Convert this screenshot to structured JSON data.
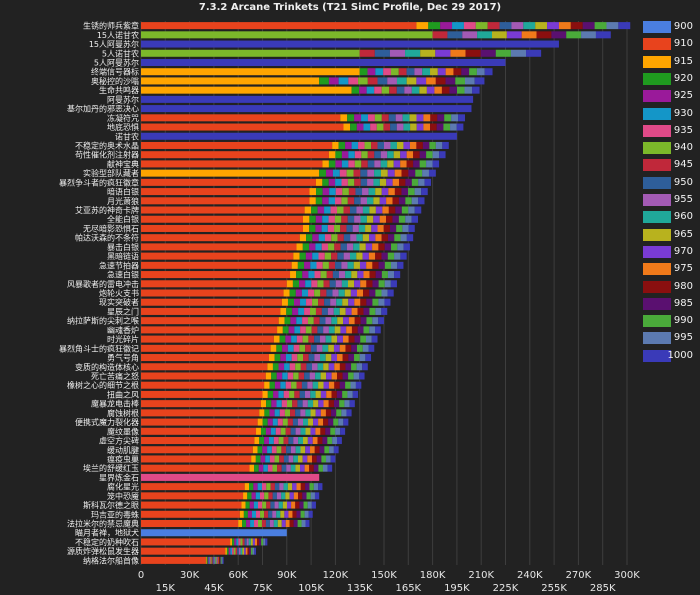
{
  "chart_data": {
    "type": "bar",
    "orientation": "horizontal",
    "stacked": true,
    "title": "7.3.2 Arcane Trinkets (T21 SimC Profile, Dec 29 2017)",
    "xlim": [
      0,
      300000
    ],
    "x_ticks_row1": [
      "0",
      "30K",
      "60K",
      "90K",
      "120K",
      "150K",
      "180K",
      "210K",
      "240K",
      "270K",
      "300K"
    ],
    "x_ticks_row2": [
      "15K",
      "45K",
      "75K",
      "105K",
      "135K",
      "165K",
      "195K",
      "225K",
      "255K",
      "285K"
    ],
    "grid": true,
    "legend_position": "right",
    "legend": [
      {
        "label": "900",
        "color": "#4a7ee0"
      },
      {
        "label": "910",
        "color": "#e8431d"
      },
      {
        "label": "915",
        "color": "#ffa500"
      },
      {
        "label": "920",
        "color": "#1f9b1f"
      },
      {
        "label": "925",
        "color": "#9a1a9a"
      },
      {
        "label": "930",
        "color": "#1496c8"
      },
      {
        "label": "935",
        "color": "#e04a88"
      },
      {
        "label": "940",
        "color": "#7cb82a"
      },
      {
        "label": "945",
        "color": "#c0283a"
      },
      {
        "label": "950",
        "color": "#2e5e9a"
      },
      {
        "label": "955",
        "color": "#a35ab4"
      },
      {
        "label": "960",
        "color": "#20a89a"
      },
      {
        "label": "965",
        "color": "#b8b21e"
      },
      {
        "label": "970",
        "color": "#7a3bd4"
      },
      {
        "label": "975",
        "color": "#f07a1a"
      },
      {
        "label": "980",
        "color": "#8a0f0f"
      },
      {
        "label": "985",
        "color": "#5a1070"
      },
      {
        "label": "990",
        "color": "#4aaa3a"
      },
      {
        "label": "995",
        "color": "#5c7ab0"
      },
      {
        "label": "1000",
        "color": "#3a3ab8"
      }
    ],
    "categories": [
      {
        "label": "生锈的师兵紫章",
        "base": 910,
        "first": 170000,
        "total": 302000
      },
      {
        "label": "15人诺甘农",
        "base": 940,
        "first": 180000,
        "total": 290000
      },
      {
        "label": "15人阿曼苏尔",
        "base": 1000,
        "first": 258000,
        "total": 258000
      },
      {
        "label": "5人诺甘农",
        "base": 940,
        "first": 135000,
        "total": 247000
      },
      {
        "label": "5人阿曼苏尔",
        "base": 1000,
        "first": 225000,
        "total": 225000
      },
      {
        "label": "终端信号器标",
        "base": 915,
        "first": 135000,
        "total": 217000
      },
      {
        "label": "奥秘控的沙嗡",
        "base": 915,
        "first": 110000,
        "total": 212000
      },
      {
        "label": "生命共鸣器",
        "base": 915,
        "first": 130000,
        "total": 209000
      },
      {
        "label": "阿曼苏尔",
        "base": 1000,
        "first": 205000,
        "total": 205000
      },
      {
        "label": "基尔加丹的邪恶决心",
        "base": 1000,
        "first": 204000,
        "total": 204000
      },
      {
        "label": "冻凝符咒",
        "base": 910,
        "first": 123000,
        "total": 200000
      },
      {
        "label": "地底恐惧",
        "base": 910,
        "first": 125000,
        "total": 199000
      },
      {
        "label": "诺甘农",
        "base": 1000,
        "first": 195000,
        "total": 195000
      },
      {
        "label": "不稳定的奥术水晶",
        "base": 910,
        "first": 118000,
        "total": 190000
      },
      {
        "label": "苟性催化剂注射器",
        "base": 910,
        "first": 116000,
        "total": 188000
      },
      {
        "label": "献神宝典",
        "base": 910,
        "first": 112000,
        "total": 184000
      },
      {
        "label": "实验型部队藏者",
        "base": 915,
        "first": 110000,
        "total": 182000
      },
      {
        "label": "暴烈争斗者的疯狂徽章",
        "base": 910,
        "first": 108000,
        "total": 179000
      },
      {
        "label": "暗语白银",
        "base": 910,
        "first": 104000,
        "total": 177000
      },
      {
        "label": "月光萧狼",
        "base": 910,
        "first": 104000,
        "total": 175000
      },
      {
        "label": "艾亚苏的神奇卡牌",
        "base": 910,
        "first": 101000,
        "total": 173000
      },
      {
        "label": "全能白银",
        "base": 910,
        "first": 100000,
        "total": 171000
      },
      {
        "label": "无尽暗影恐惧石",
        "base": 910,
        "first": 100000,
        "total": 169000
      },
      {
        "label": "帕达沃森的不条符",
        "base": 910,
        "first": 98000,
        "total": 168000
      },
      {
        "label": "暴击白银",
        "base": 910,
        "first": 96000,
        "total": 166000
      },
      {
        "label": "黑暗链语",
        "base": 910,
        "first": 94000,
        "total": 164000
      },
      {
        "label": "急速节拍器",
        "base": 910,
        "first": 93000,
        "total": 162000
      },
      {
        "label": "急速白银",
        "base": 910,
        "first": 92000,
        "total": 160000
      },
      {
        "label": "风暴歌者的雷电冲击",
        "base": 910,
        "first": 90000,
        "total": 158000
      },
      {
        "label": "炮轮火支书",
        "base": 910,
        "first": 88000,
        "total": 156000
      },
      {
        "label": "现实突破者",
        "base": 910,
        "first": 87000,
        "total": 154000
      },
      {
        "label": "星辰之门",
        "base": 910,
        "first": 86000,
        "total": 152000
      },
      {
        "label": "纳拉萨斯的尖刺之喉",
        "base": 910,
        "first": 85000,
        "total": 150000
      },
      {
        "label": "幽魂香炉",
        "base": 910,
        "first": 84000,
        "total": 148000
      },
      {
        "label": "时光碎片",
        "base": 910,
        "first": 82000,
        "total": 146000
      },
      {
        "label": "暴烈角斗士的疯狂徽记",
        "base": 910,
        "first": 80000,
        "total": 144000
      },
      {
        "label": "勇气号角",
        "base": 910,
        "first": 79000,
        "total": 142000
      },
      {
        "label": "变质的构造体核心",
        "base": 910,
        "first": 78000,
        "total": 140000
      },
      {
        "label": "死亡苦痛之怒",
        "base": 910,
        "first": 77000,
        "total": 138000
      },
      {
        "label": "橡树之心的细节之根",
        "base": 910,
        "first": 76000,
        "total": 136000
      },
      {
        "label": "扭曲之风",
        "base": 910,
        "first": 75000,
        "total": 134000
      },
      {
        "label": "魔暴龙电击棒",
        "base": 910,
        "first": 74000,
        "total": 132000
      },
      {
        "label": "腐蚀树根",
        "base": 910,
        "first": 73000,
        "total": 130000
      },
      {
        "label": "便携式魔力裂化器",
        "base": 910,
        "first": 72000,
        "total": 128000
      },
      {
        "label": "魔纹墨像",
        "base": 910,
        "first": 71000,
        "total": 126000
      },
      {
        "label": "虚空方尖碑",
        "base": 910,
        "first": 70000,
        "total": 124000
      },
      {
        "label": "缓动肌腱",
        "base": 910,
        "first": 69000,
        "total": 122000
      },
      {
        "label": "瘟疫虫巢",
        "base": 910,
        "first": 68000,
        "total": 120000
      },
      {
        "label": "埃兰的舒缓红玉",
        "base": 910,
        "first": 67000,
        "total": 118000
      },
      {
        "label": "星界炼金石",
        "base": 935,
        "first": 110000,
        "total": 110000
      },
      {
        "label": "腐化星光",
        "base": 910,
        "first": 64000,
        "total": 112000
      },
      {
        "label": "笼中恐魇",
        "base": 910,
        "first": 63000,
        "total": 110000
      },
      {
        "label": "斯科瓦尔德之眼",
        "base": 910,
        "first": 62000,
        "total": 108000
      },
      {
        "label": "玛吉亚的毒蛛",
        "base": 910,
        "first": 61000,
        "total": 106000
      },
      {
        "label": "法拉米尔的禁忌魔典",
        "base": 910,
        "first": 60000,
        "total": 104000
      },
      {
        "label": "瞄月者禅，地狱犬",
        "base": 900,
        "first": 90000,
        "total": 90000
      },
      {
        "label": "不稳定的奶种吹石",
        "base": 910,
        "first": 55000,
        "total": 78000
      },
      {
        "label": "源质炸弹松鼠发生器",
        "base": 910,
        "first": 52000,
        "total": 71000
      },
      {
        "label": "纳格法尔船首像",
        "base": 910,
        "first": 40000,
        "total": 51000
      }
    ]
  }
}
